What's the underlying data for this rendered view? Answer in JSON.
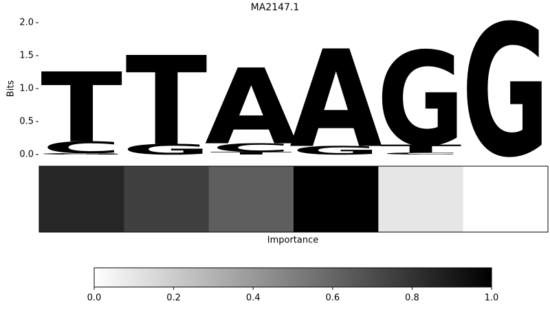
{
  "chart_data": [
    {
      "type": "logo",
      "title": "MA2147.1",
      "ylabel": "Bits",
      "ylim": [
        0,
        2
      ],
      "yticks": [
        {
          "value": 0,
          "label": "0.0"
        },
        {
          "value": 0.5,
          "label": "0.5"
        },
        {
          "value": 1,
          "label": "1.0"
        },
        {
          "value": 1.5,
          "label": "1.5"
        },
        {
          "value": 2,
          "label": "2.0"
        }
      ],
      "series": [
        {
          "name": "A",
          "color": "#4ca64c",
          "values": [
            0,
            0,
            1.15,
            1.48,
            0,
            0
          ]
        },
        {
          "name": "C",
          "color": "#4c4cff",
          "values": [
            0.18,
            0,
            0.13,
            0,
            0.03,
            0
          ]
        },
        {
          "name": "G",
          "color": "#ffc04c",
          "values": [
            0.02,
            0.16,
            0,
            0.13,
            1.43,
            2.0
          ]
        },
        {
          "name": "T",
          "color": "#ff4c4c",
          "values": [
            1.06,
            1.35,
            0.04,
            0,
            0.12,
            0
          ]
        }
      ]
    },
    {
      "type": "heatmap",
      "xlabel": "Importance",
      "values": [
        0.85,
        0.75,
        0.63,
        1.0,
        0.1,
        0.0
      ],
      "cmap": [
        "#ffffff",
        "#000000"
      ],
      "clim": [
        0,
        1
      ],
      "cticks": [
        {
          "value": 0,
          "label": "0.0"
        },
        {
          "value": 0.2,
          "label": "0.2"
        },
        {
          "value": 0.4,
          "label": "0.4"
        },
        {
          "value": 0.6,
          "label": "0.6"
        },
        {
          "value": 0.8,
          "label": "0.8"
        },
        {
          "value": 1,
          "label": "1.0"
        }
      ]
    }
  ]
}
